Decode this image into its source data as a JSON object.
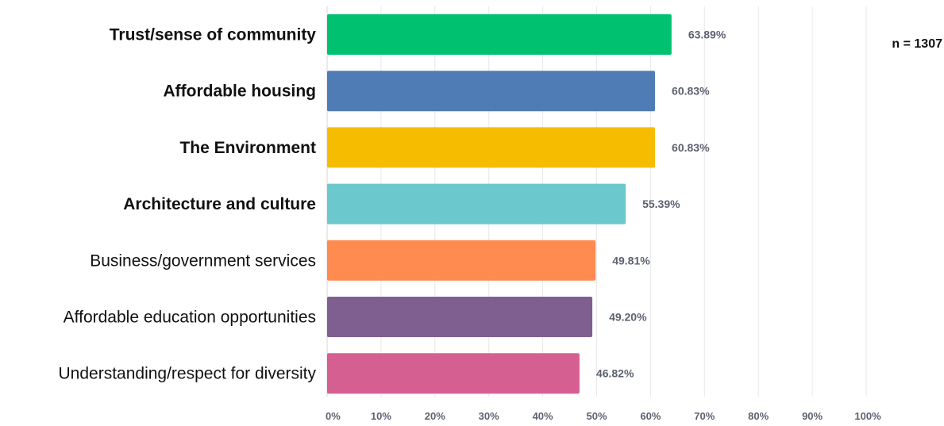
{
  "chart_data": {
    "type": "bar",
    "orientation": "horizontal",
    "categories": [
      "Trust/sense of community",
      "Affordable housing",
      "The Environment",
      "Architecture and culture",
      "Business/government services",
      "Affordable education opportunities",
      "Understanding/respect for diversity"
    ],
    "bold_categories": [
      true,
      true,
      true,
      true,
      false,
      false,
      false
    ],
    "values": [
      63.89,
      60.83,
      60.83,
      55.39,
      49.81,
      49.2,
      46.82
    ],
    "value_labels": [
      "63.89%",
      "60.83%",
      "60.83%",
      "55.39%",
      "49.81%",
      "49.20%",
      "46.82%"
    ],
    "colors": [
      "#00c170",
      "#507cb6",
      "#f6bd00",
      "#6bc8cd",
      "#ff8b50",
      "#7f5f90",
      "#d55f90"
    ],
    "xlim": [
      0,
      100
    ],
    "x_ticks": [
      "0%",
      "10%",
      "20%",
      "30%",
      "40%",
      "50%",
      "60%",
      "70%",
      "80%",
      "90%",
      "100%"
    ],
    "grid": true,
    "title": "",
    "xlabel": "",
    "ylabel": ""
  },
  "annotation": {
    "text": "n = 1307"
  }
}
